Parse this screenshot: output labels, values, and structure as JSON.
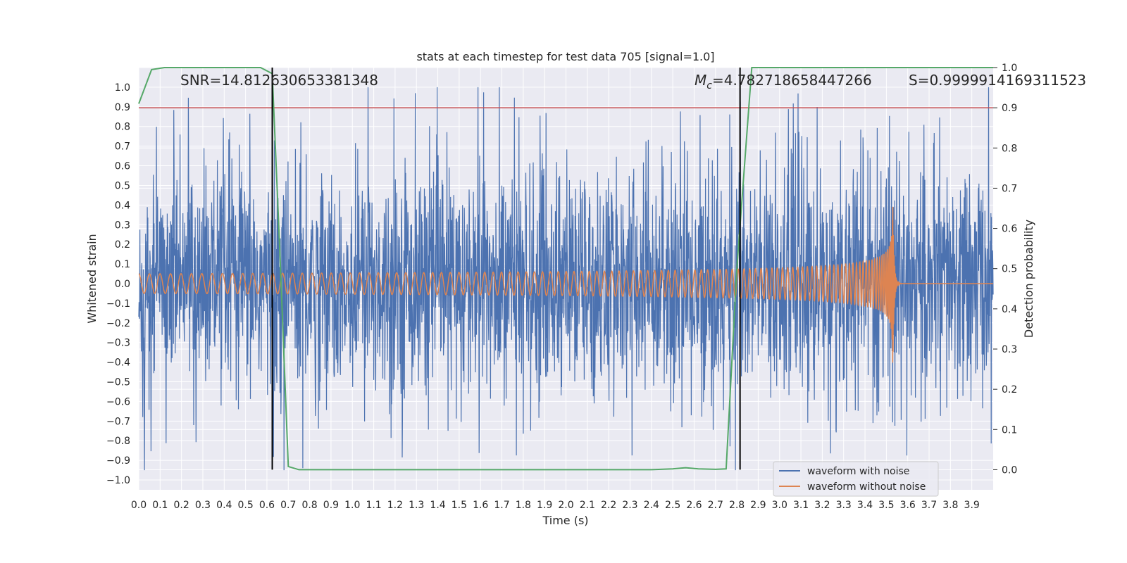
{
  "chart_data": {
    "type": "line",
    "title": "stats at each timestep for test data 705 [signal=1.0]",
    "xlabel": "Time (s)",
    "ylabel": "Whitened strain",
    "y2label": "Detection probability",
    "xlim": [
      0.0,
      4.0
    ],
    "ylim": [
      -1.05,
      1.1
    ],
    "y2lim": [
      -0.05,
      1.0
    ],
    "grid": true,
    "x_ticks": [
      "0.0",
      "0.1",
      "0.2",
      "0.3",
      "0.4",
      "0.5",
      "0.6",
      "0.7",
      "0.8",
      "0.9",
      "1.0",
      "1.1",
      "1.2",
      "1.3",
      "1.4",
      "1.5",
      "1.6",
      "1.7",
      "1.8",
      "1.9",
      "2.0",
      "2.1",
      "2.2",
      "2.3",
      "2.4",
      "2.5",
      "2.6",
      "2.7",
      "2.8",
      "2.9",
      "3.0",
      "3.1",
      "3.2",
      "3.3",
      "3.4",
      "3.5",
      "3.6",
      "3.7",
      "3.8",
      "3.9"
    ],
    "y_ticks": [
      "1.0",
      "0.9",
      "0.8",
      "0.7",
      "0.6",
      "0.5",
      "0.4",
      "0.3",
      "0.2",
      "0.1",
      "0.0",
      "−0.1",
      "−0.2",
      "−0.3",
      "−0.4",
      "−0.5",
      "−0.6",
      "−0.7",
      "−0.8",
      "−0.9",
      "−1.0"
    ],
    "y2_ticks": [
      "1.0",
      "0.9",
      "0.8",
      "0.7",
      "0.6",
      "0.5",
      "0.4",
      "0.3",
      "0.2",
      "0.1",
      "0.0"
    ],
    "annotations": {
      "snr": "SNR=14.812630653381348",
      "mc_symbol": "M",
      "mc_sub": "c",
      "mc_value": "=4.782718658447266",
      "s": "S=0.9999914169311523"
    },
    "threshold": {
      "axis": "y2",
      "value": 0.9,
      "color": "#c44e52"
    },
    "vlines": [
      0.625,
      2.815
    ],
    "series": [
      {
        "name": "waveform with noise",
        "color": "#4c72b0",
        "axis": "y",
        "noise_amplitude": 0.28,
        "peak_range": [
          -0.95,
          1.0
        ]
      },
      {
        "name": "waveform without noise",
        "color": "#dd8452",
        "axis": "y",
        "start_amplitude": 0.05,
        "merger_time": 3.53,
        "merger_amplitude": 0.45,
        "start_freq_hz": 20,
        "end_freq_hz": 300
      },
      {
        "name": "detection probability",
        "color": "#55a868",
        "axis": "y2",
        "x": [
          0.0,
          0.06,
          0.12,
          0.2,
          0.3,
          0.4,
          0.5,
          0.57,
          0.625,
          0.66,
          0.7,
          0.75,
          0.8,
          1.0,
          1.5,
          2.0,
          2.4,
          2.5,
          2.56,
          2.62,
          2.7,
          2.75,
          2.8,
          2.87,
          3.0,
          3.5,
          4.0
        ],
        "values": [
          0.91,
          0.995,
          1.0,
          1.0,
          1.0,
          1.0,
          1.0,
          1.0,
          0.985,
          0.55,
          0.008,
          0.0,
          0.0,
          0.0,
          0.0,
          0.0,
          0.0,
          0.002,
          0.005,
          0.002,
          0.001,
          0.002,
          0.5,
          1.0,
          1.0,
          1.0,
          1.0
        ]
      }
    ],
    "legend": {
      "location": "lower-right",
      "entries": [
        "waveform with noise",
        "waveform without noise"
      ]
    }
  }
}
